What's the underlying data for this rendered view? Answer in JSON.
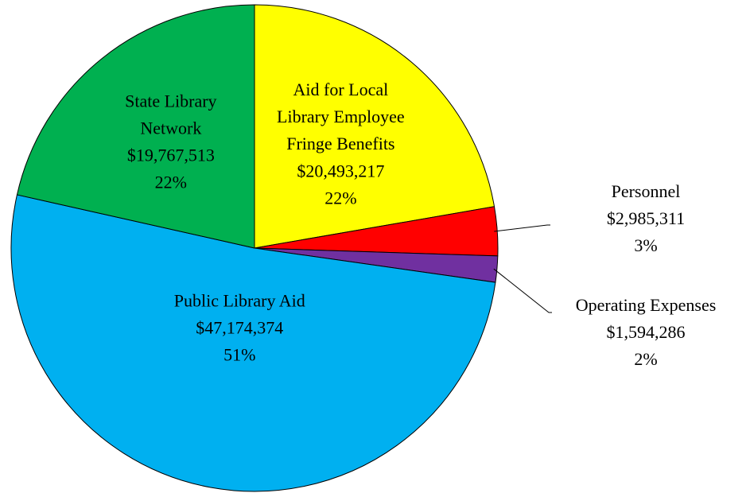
{
  "chart_data": {
    "type": "pie",
    "categories": [
      "Aid for Local\nLibrary Employee\nFringe Benefits",
      "Personnel",
      "Operating Expenses",
      "Public Library Aid",
      "State Library\nNetwork"
    ],
    "values": [
      20493217,
      2985311,
      1594286,
      47174374,
      19767513
    ],
    "value_labels": [
      "$20,493,217",
      "$2,985,311",
      "$1,594,286",
      "$47,174,374",
      "$19,767,513"
    ],
    "percents": [
      22,
      3,
      2,
      51,
      22
    ],
    "percent_labels": [
      "22%",
      "3%",
      "2%",
      "51%",
      "22%"
    ],
    "colors": [
      "#ffff00",
      "#ff0000",
      "#7030a0",
      "#00b0f0",
      "#00b050"
    ]
  }
}
